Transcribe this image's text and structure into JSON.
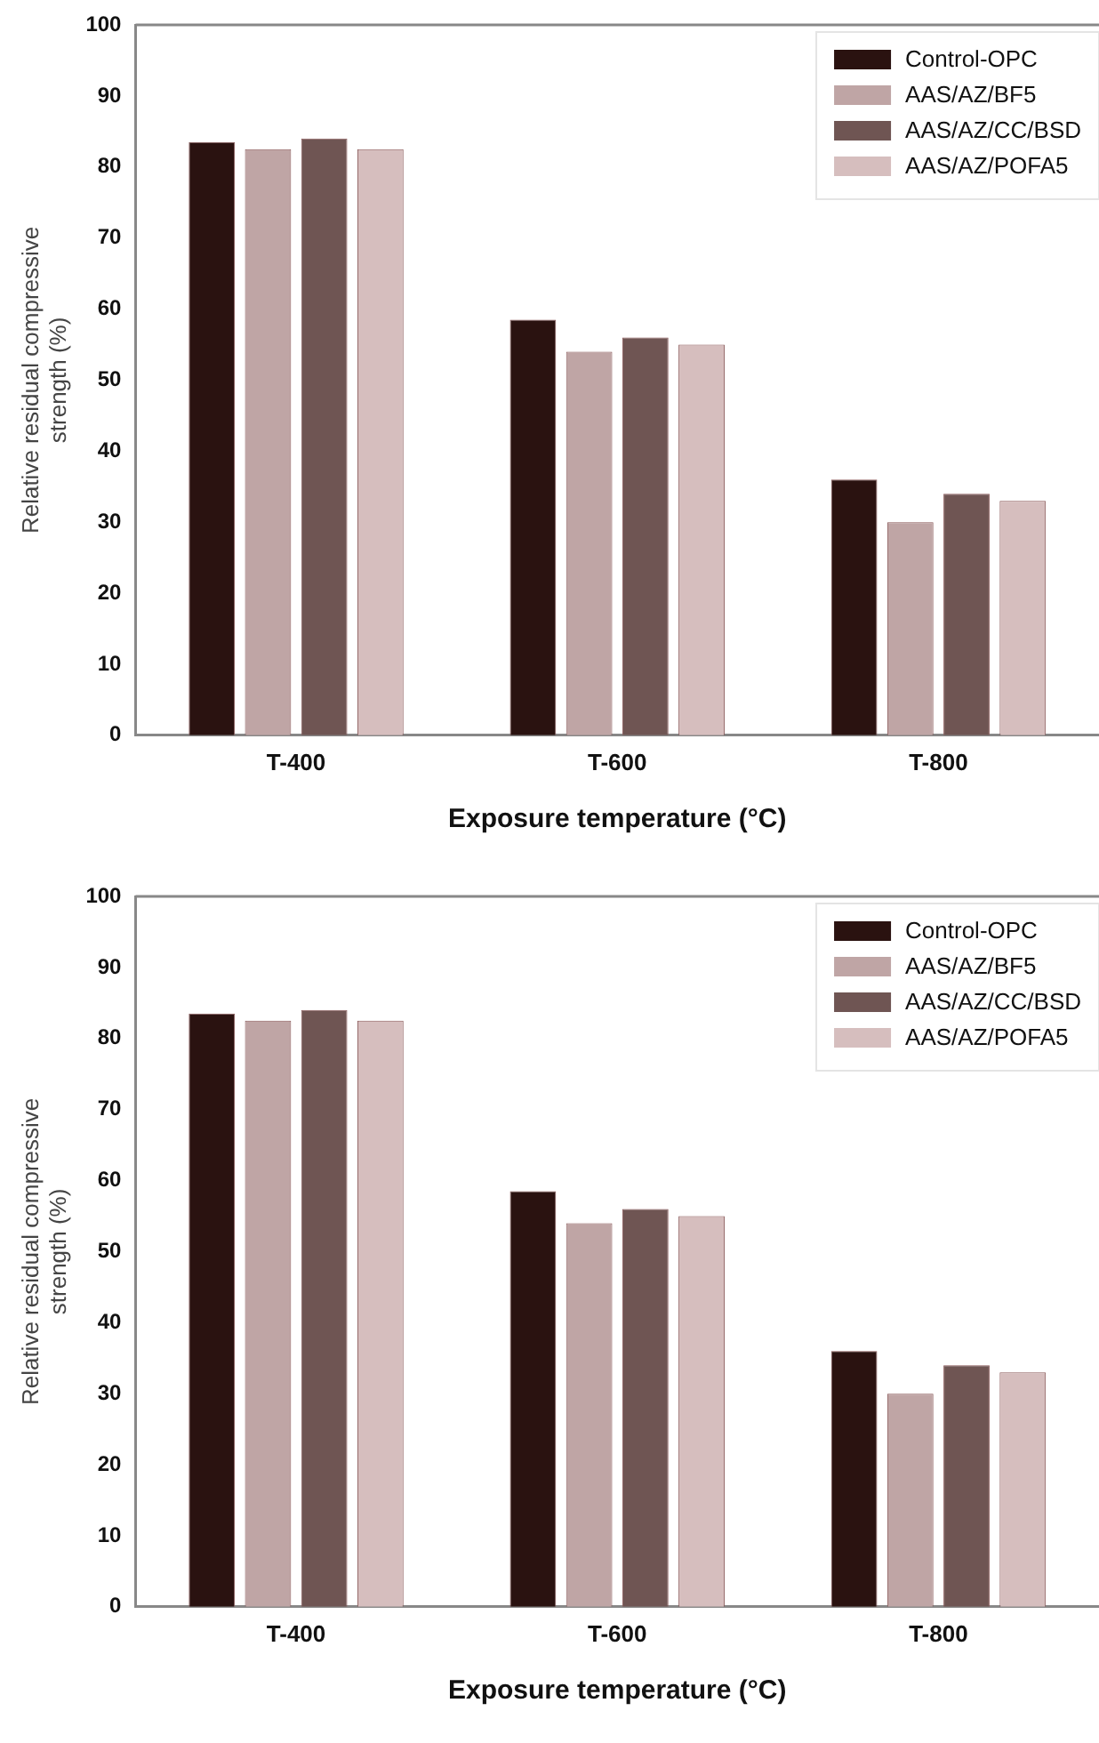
{
  "chart_data": [
    {
      "type": "bar",
      "categories": [
        "T-400",
        "T-600",
        "T-800"
      ],
      "xlabel": "Exposure temperature (°C)",
      "ylabel": "Relative residual compressive strength (%)",
      "ylim": [
        0,
        100
      ],
      "yticks": [
        0,
        10,
        20,
        30,
        40,
        50,
        60,
        70,
        80,
        90,
        100
      ],
      "legend": "top right",
      "series": [
        {
          "name": "Control-OPC",
          "color": "#2a1210",
          "values": [
            83.5,
            58.5,
            36
          ]
        },
        {
          "name": "AAS/AZ/BF5",
          "color": "#bfa5a5",
          "values": [
            82.5,
            54,
            30
          ]
        },
        {
          "name": "AAS/AZ/CC/BSD",
          "color": "#6f5553",
          "values": [
            84,
            56,
            34
          ]
        },
        {
          "name": "AAS/AZ/POFA5",
          "color": "#d6bebe",
          "values": [
            82.5,
            55,
            33
          ]
        }
      ]
    },
    {
      "type": "bar",
      "categories": [
        "T-400",
        "T-600",
        "T-800"
      ],
      "xlabel": "Exposure temperature (°C)",
      "ylabel": "Relative residual compressive strength (%)",
      "ylim": [
        0,
        100
      ],
      "yticks": [
        0,
        10,
        20,
        30,
        40,
        50,
        60,
        70,
        80,
        90,
        100
      ],
      "legend": "top right",
      "series": [
        {
          "name": "Control-OPC",
          "color": "#2a1210",
          "values": [
            83.5,
            58.5,
            36
          ]
        },
        {
          "name": "AAS/AZ/BF5",
          "color": "#bfa5a5",
          "values": [
            82.5,
            54,
            30
          ]
        },
        {
          "name": "AAS/AZ/CC/BSD",
          "color": "#6f5553",
          "values": [
            84,
            56,
            34
          ]
        },
        {
          "name": "AAS/AZ/POFA5",
          "color": "#d6bebe",
          "values": [
            82.5,
            55,
            33
          ]
        }
      ]
    }
  ]
}
